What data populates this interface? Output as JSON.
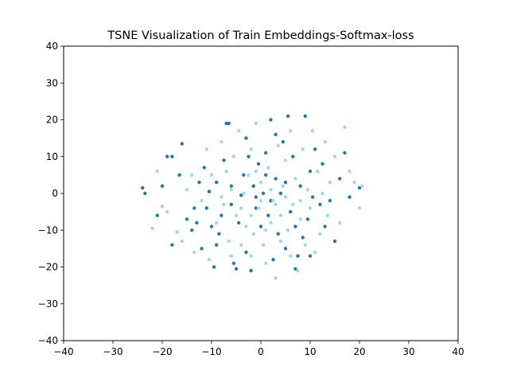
{
  "chart_data": {
    "type": "scatter",
    "title": "TSNE Visualization of Train Embeddings-Softmax-loss",
    "xlabel": "",
    "ylabel": "",
    "xlim": [
      -40,
      40
    ],
    "ylim": [
      -40,
      40
    ],
    "xticks": [
      -40,
      -30,
      -20,
      -10,
      0,
      10,
      20,
      30,
      40
    ],
    "yticks": [
      -40,
      -30,
      -20,
      -10,
      0,
      10,
      20,
      30,
      40
    ],
    "xtick_labels": [
      "−40",
      "−30",
      "−20",
      "−10",
      "0",
      "10",
      "20",
      "30",
      "40"
    ],
    "ytick_labels": [
      "−40",
      "−30",
      "−20",
      "−10",
      "0",
      "10",
      "20",
      "30",
      "40"
    ],
    "grid": false,
    "legend": "none",
    "series": [
      {
        "color": "#1f77b4",
        "points": [
          [
            -24,
            1.5
          ],
          [
            -23.5,
            0
          ],
          [
            -21,
            -6
          ],
          [
            -20,
            2
          ],
          [
            -19,
            10
          ],
          [
            -18,
            10
          ],
          [
            -18,
            -14
          ],
          [
            -16.5,
            5
          ],
          [
            -16,
            13.5
          ],
          [
            -15,
            -7
          ],
          [
            -14,
            -10
          ],
          [
            -13.5,
            -4
          ],
          [
            -13,
            -8
          ],
          [
            -12.5,
            3
          ],
          [
            -12,
            -15
          ],
          [
            -11.5,
            7
          ],
          [
            -11,
            -4
          ],
          [
            -10.5,
            0.5
          ],
          [
            -10,
            -9
          ],
          [
            -9.5,
            -20
          ],
          [
            -9,
            3
          ],
          [
            -8.5,
            -11
          ],
          [
            -8,
            -6
          ],
          [
            -7.5,
            9
          ],
          [
            -7,
            19
          ],
          [
            -6.5,
            19
          ],
          [
            -6,
            -3
          ],
          [
            -5.5,
            -19
          ],
          [
            -5,
            -20.5
          ],
          [
            -4.5,
            -8
          ],
          [
            -4,
            -0.5
          ],
          [
            -3.5,
            5
          ],
          [
            -3,
            -16
          ],
          [
            -2.5,
            10
          ],
          [
            -2,
            -21
          ],
          [
            -1.5,
            2
          ],
          [
            -1,
            -4
          ],
          [
            -0.5,
            8
          ],
          [
            0,
            -9
          ],
          [
            0.5,
            0
          ],
          [
            1,
            11
          ],
          [
            1.5,
            -6
          ],
          [
            2,
            20
          ],
          [
            2.5,
            -18
          ],
          [
            3,
            4
          ],
          [
            3.5,
            -11
          ],
          [
            4,
            0
          ],
          [
            4.5,
            14
          ],
          [
            5,
            -15
          ],
          [
            5.5,
            21
          ],
          [
            6,
            -5
          ],
          [
            6.5,
            10
          ],
          [
            7,
            -20.5
          ],
          [
            7.5,
            -17
          ],
          [
            8,
            2
          ],
          [
            8.5,
            -12
          ],
          [
            9,
            21
          ],
          [
            9.5,
            -7
          ],
          [
            10,
            6
          ],
          [
            10.5,
            -1
          ],
          [
            11,
            12
          ],
          [
            12,
            -3
          ],
          [
            12.5,
            8
          ],
          [
            13,
            -9
          ],
          [
            14,
            -2
          ],
          [
            15,
            -13
          ],
          [
            16,
            4
          ],
          [
            17,
            11
          ],
          [
            18,
            -1
          ],
          [
            20,
            1.5
          ],
          [
            -3,
            15
          ],
          [
            3,
            16
          ],
          [
            1,
            5
          ],
          [
            -1,
            -1
          ],
          [
            2,
            -2
          ],
          [
            5,
            3
          ],
          [
            -6,
            2
          ],
          [
            7,
            -9
          ],
          [
            -9,
            -14
          ],
          [
            10,
            -17
          ]
        ]
      },
      {
        "color": "#9edae5",
        "points": [
          [
            -22,
            -9.5
          ],
          [
            -21,
            6
          ],
          [
            -20,
            -3.5
          ],
          [
            -19,
            -5
          ],
          [
            -17,
            -10.5
          ],
          [
            -16,
            -13
          ],
          [
            -15,
            1
          ],
          [
            -14,
            5
          ],
          [
            -13.5,
            -16
          ],
          [
            -12,
            -2
          ],
          [
            -11,
            12
          ],
          [
            -10.5,
            -18
          ],
          [
            -10,
            5
          ],
          [
            -9,
            -8
          ],
          [
            -8,
            14
          ],
          [
            -7.5,
            -3
          ],
          [
            -7,
            6
          ],
          [
            -6.5,
            -13
          ],
          [
            -6,
            1
          ],
          [
            -5.5,
            10
          ],
          [
            -5,
            -6
          ],
          [
            -4.5,
            17
          ],
          [
            -4,
            -14
          ],
          [
            -3.5,
            0
          ],
          [
            -3,
            -9
          ],
          [
            -2.5,
            5
          ],
          [
            -2,
            12
          ],
          [
            -1.5,
            -11
          ],
          [
            -1,
            19
          ],
          [
            -0.5,
            -4
          ],
          [
            0,
            3
          ],
          [
            0.5,
            -14
          ],
          [
            1,
            -19
          ],
          [
            1.5,
            7
          ],
          [
            2,
            -8
          ],
          [
            2.5,
            -2
          ],
          [
            3,
            -23
          ],
          [
            3.5,
            13
          ],
          [
            4,
            -6
          ],
          [
            4.5,
            2
          ],
          [
            5,
            9
          ],
          [
            5.5,
            -10
          ],
          [
            6,
            17
          ],
          [
            6.5,
            -3
          ],
          [
            7,
            4
          ],
          [
            7.5,
            -21
          ],
          [
            8,
            -7
          ],
          [
            8.5,
            12
          ],
          [
            9,
            -14
          ],
          [
            9.5,
            1
          ],
          [
            10,
            -4
          ],
          [
            10.5,
            17
          ],
          [
            11,
            -16
          ],
          [
            11.5,
            6
          ],
          [
            12,
            -11
          ],
          [
            12.5,
            0
          ],
          [
            13,
            14
          ],
          [
            13.5,
            -6
          ],
          [
            14,
            3
          ],
          [
            15,
            10
          ],
          [
            16,
            -8
          ],
          [
            17,
            18
          ],
          [
            18,
            6
          ],
          [
            19,
            3
          ],
          [
            20,
            -4
          ],
          [
            20.5,
            2
          ],
          [
            -2,
            -17
          ],
          [
            4,
            -13
          ],
          [
            -6,
            -17
          ],
          [
            6,
            -17
          ],
          [
            2,
            1
          ],
          [
            -1,
            6
          ],
          [
            0,
            -2
          ],
          [
            3,
            -3
          ],
          [
            -4,
            -4
          ],
          [
            1,
            -10
          ],
          [
            -2,
            -6
          ],
          [
            5,
            -1
          ],
          [
            8,
            -2
          ],
          [
            -8,
            -1
          ]
        ]
      }
    ]
  }
}
